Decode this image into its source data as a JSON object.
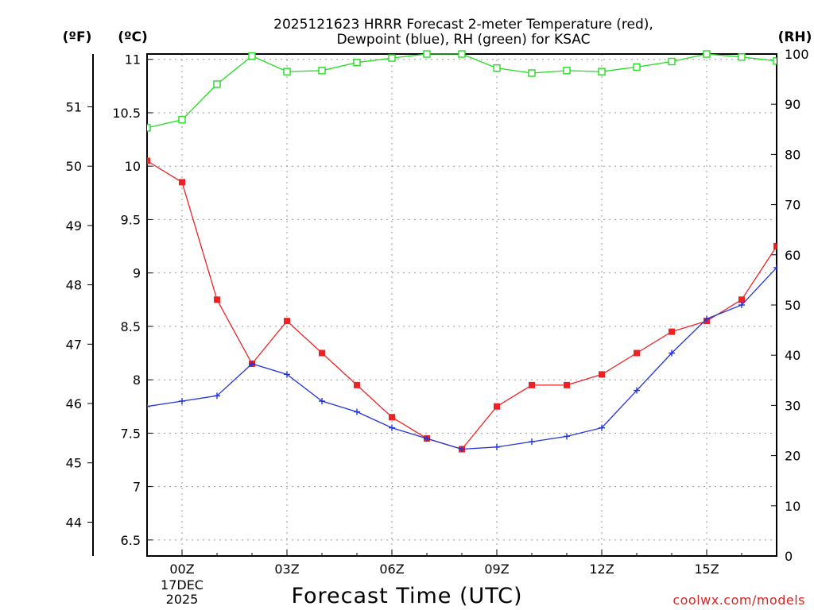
{
  "chart_data": {
    "type": "line",
    "title_line1": "2025121623 HRRR Forecast 2-meter Temperature (red),",
    "title_line2": "Dewpoint (blue), RH (green) for KSAC",
    "xlabel": "Forecast Time (UTC)",
    "left_outer_unit": "(ºF)",
    "left_inner_unit": "(ºC)",
    "right_unit": "(RH)",
    "watermark": "coolwx.com/models",
    "x_hours": [
      -1,
      0,
      1,
      2,
      3,
      4,
      5,
      6,
      7,
      8,
      9,
      10,
      11,
      12,
      13,
      14,
      15,
      16,
      17
    ],
    "x_ticks": [
      {
        "hour": 0,
        "label": "00Z",
        "sub1": "17DEC",
        "sub2": "2025"
      },
      {
        "hour": 3,
        "label": "03Z"
      },
      {
        "hour": 6,
        "label": "06Z"
      },
      {
        "hour": 9,
        "label": "09Z"
      },
      {
        "hour": 12,
        "label": "12Z"
      },
      {
        "hour": 15,
        "label": "15Z"
      }
    ],
    "xlim": [
      -1,
      17
    ],
    "ylim_c": [
      6.35,
      11.05
    ],
    "ylim_rh": [
      0,
      100
    ],
    "y_ticks_c": [
      "6.5",
      "7",
      "7.5",
      "8",
      "8.5",
      "9",
      "9.5",
      "10",
      "10.5",
      "11"
    ],
    "y_ticks_f": [
      "44",
      "45",
      "46",
      "47",
      "48",
      "49",
      "50",
      "51"
    ],
    "y_ticks_rh": [
      "0",
      "10",
      "20",
      "30",
      "40",
      "50",
      "60",
      "70",
      "80",
      "90",
      "100"
    ],
    "series": [
      {
        "name": "Temperature",
        "axis": "C",
        "color": "#ee2222",
        "marker": "filled-square",
        "values": [
          10.05,
          9.85,
          8.75,
          8.15,
          8.55,
          8.25,
          7.95,
          7.65,
          7.45,
          7.35,
          7.75,
          7.95,
          7.95,
          8.05,
          8.25,
          8.45,
          8.55,
          8.75,
          9.25
        ]
      },
      {
        "name": "Dewpoint",
        "axis": "C",
        "color": "#2233dd",
        "marker": "plus",
        "values": [
          7.75,
          7.8,
          7.85,
          8.15,
          8.05,
          7.8,
          7.7,
          7.55,
          7.45,
          7.35,
          7.37,
          7.42,
          7.47,
          7.55,
          7.9,
          8.25,
          8.57,
          8.7,
          9.05
        ]
      },
      {
        "name": "RH",
        "axis": "RH",
        "color": "#22dd22",
        "marker": "open-square",
        "values": [
          85.3,
          86.9,
          94.0,
          99.6,
          96.5,
          96.7,
          98.3,
          99.2,
          100.0,
          100.0,
          97.2,
          96.2,
          96.7,
          96.5,
          97.4,
          98.5,
          100.0,
          99.4,
          98.6
        ]
      }
    ]
  }
}
